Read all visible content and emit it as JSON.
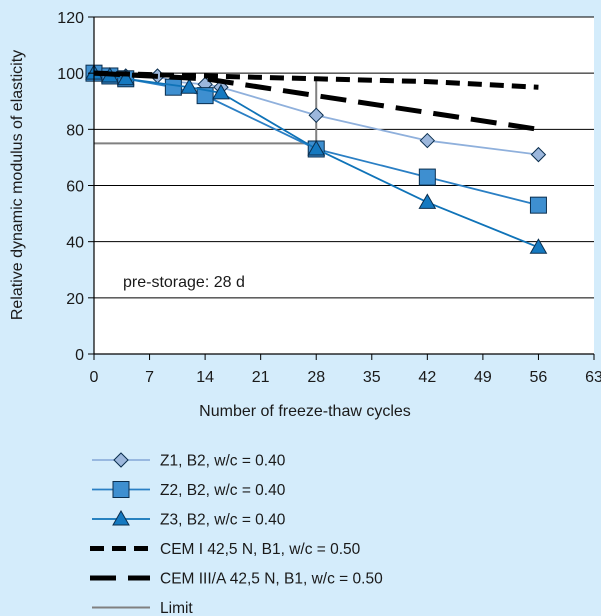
{
  "chart_data": {
    "type": "line",
    "title": "",
    "xlabel": "Number of freeze-thaw cycles",
    "ylabel": "Relative dynamic modulus of elasticity",
    "xlim": [
      0,
      63
    ],
    "ylim": [
      0,
      120
    ],
    "xticks": [
      0,
      7,
      14,
      21,
      28,
      35,
      42,
      49,
      56,
      63
    ],
    "yticks": [
      0,
      20,
      40,
      60,
      80,
      100,
      120
    ],
    "grid": "horizontal",
    "legend_position": "bottom",
    "annotation": "pre-storage: 28 d",
    "series": [
      {
        "name": "Z1,  B2,  w/c = 0.40",
        "marker": "diamond",
        "color": "#8fb0dc",
        "marker_fill": "#9cb7dc",
        "x": [
          0,
          2,
          4,
          8,
          10,
          14,
          16,
          28,
          42,
          56
        ],
        "y": [
          100,
          99,
          99,
          99,
          97,
          96,
          95,
          85,
          76,
          71
        ]
      },
      {
        "name": "Z2,  B2,  w/c = 0.40",
        "marker": "square",
        "color": "#2a7fc4",
        "marker_fill": "#3e8fd0",
        "x": [
          0,
          2,
          4,
          10,
          14,
          28,
          42,
          56
        ],
        "y": [
          100,
          99,
          98,
          95,
          92,
          73,
          63,
          53
        ]
      },
      {
        "name": "Z3,  B2,  w/c = 0.40",
        "marker": "triangle",
        "color": "#0f73b8",
        "marker_fill": "#1579c0",
        "x": [
          0,
          2,
          4,
          12,
          16,
          28,
          42,
          56
        ],
        "y": [
          100,
          99,
          98,
          95,
          93,
          73,
          54,
          38
        ]
      },
      {
        "name": "CEM I 42,5 N, B1, w/c = 0.50",
        "marker": "none",
        "color": "#000000",
        "dash": "short",
        "x": [
          0,
          14,
          28,
          42,
          56
        ],
        "y": [
          100,
          99,
          98,
          97,
          95
        ]
      },
      {
        "name": "CEM III/A  42,5 N, B1, w/c = 0.50",
        "marker": "none",
        "color": "#000000",
        "dash": "long",
        "x": [
          0,
          14,
          28,
          42,
          56
        ],
        "y": [
          100,
          98,
          92,
          86,
          80
        ]
      },
      {
        "name": "Limit",
        "marker": "none",
        "color": "#808080",
        "x": [
          0,
          28,
          28
        ],
        "y": [
          75,
          75,
          98
        ]
      }
    ]
  }
}
